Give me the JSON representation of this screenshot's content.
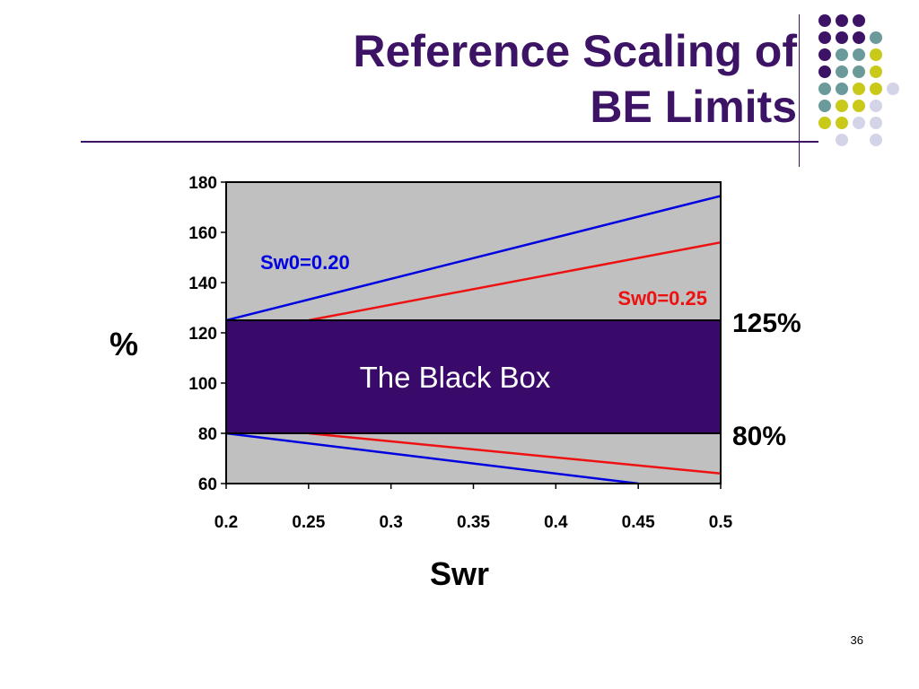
{
  "slide": {
    "title_line1": "Reference Scaling of",
    "title_line2": "BE Limits",
    "page_number": "36"
  },
  "colors": {
    "title": "#3d1366",
    "plot_bg": "#c0c0c0",
    "black_box": "#3a0a6b",
    "sw020_line": "#0000e0",
    "sw025_line": "#ee1111",
    "dot_purple": "#3d1366",
    "dot_teal": "#6b9a9a",
    "dot_yellow": "#c9c91a",
    "dot_lavender": "#d4d4e8"
  },
  "chart_data": {
    "type": "line",
    "xlabel": "Swr",
    "ylabel": "%",
    "xlim": [
      0.2,
      0.5
    ],
    "ylim": [
      60,
      180
    ],
    "x_ticks": [
      "0.2",
      "0.25",
      "0.3",
      "0.35",
      "0.4",
      "0.45",
      "0.5"
    ],
    "y_ticks": [
      "60",
      "80",
      "100",
      "120",
      "140",
      "160",
      "180"
    ],
    "box": {
      "label": "The Black Box",
      "upper": 125,
      "lower": 80,
      "upper_label": "125%",
      "lower_label": "80%"
    },
    "series": [
      {
        "name": "Sw0=0.20",
        "color_key": "sw020_line",
        "upper_points": [
          [
            0.2,
            125
          ],
          [
            0.5,
            174.5
          ]
        ],
        "lower_points": [
          [
            0.2,
            80
          ],
          [
            0.45,
            60
          ]
        ]
      },
      {
        "name": "Sw0=0.25",
        "color_key": "sw025_line",
        "upper_points": [
          [
            0.25,
            125
          ],
          [
            0.5,
            156
          ]
        ],
        "lower_points": [
          [
            0.25,
            80
          ],
          [
            0.5,
            64
          ]
        ]
      }
    ]
  }
}
